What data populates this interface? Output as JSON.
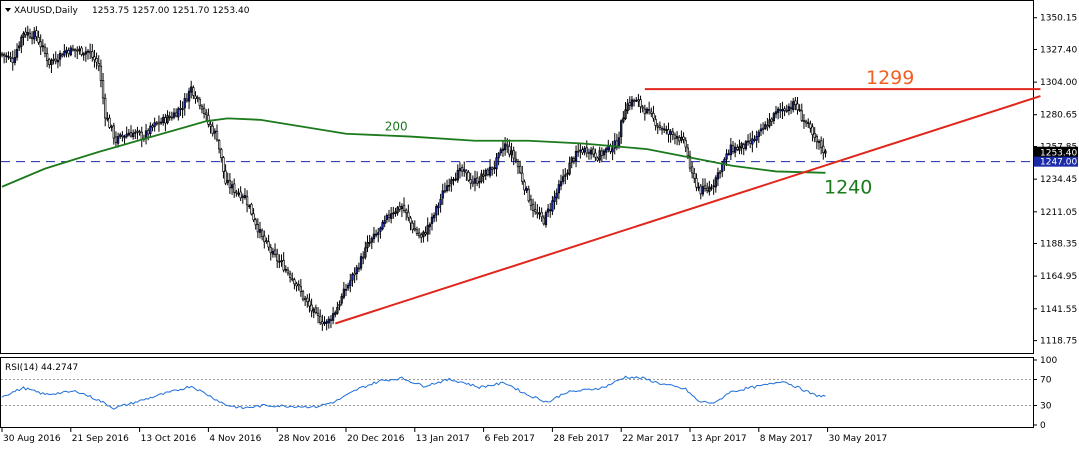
{
  "chart_data": {
    "type": "candlestick",
    "symbol": "XAUUSD",
    "timeframe": "Daily",
    "ohlc_readout": "1253.75 1257.00 1251.70 1253.40",
    "header_label": "XAUUSD,Daily",
    "price_axis": {
      "range": [
        1112,
        1360
      ],
      "ticks": [
        "1350.15",
        "1327.40",
        "1304.00",
        "1280.65",
        "1257.85",
        "1234.45",
        "1211.05",
        "1188.35",
        "1164.95",
        "1141.55",
        "1118.75"
      ],
      "current_price_label": "1253.40",
      "line_price_label": "1247.00",
      "line_price": 1247.0
    },
    "date_axis": {
      "labels": [
        "30 Aug 2016",
        "21 Sep 2016",
        "13 Oct 2016",
        "4 Nov 2016",
        "28 Nov 2016",
        "20 Dec 2016",
        "13 Jan 2017",
        "6 Feb 2017",
        "28 Feb 2017",
        "22 Mar 2017",
        "13 Apr 2017",
        "8 May 2017",
        "30 May 2017"
      ]
    },
    "price_path": [
      [
        0,
        1324
      ],
      [
        5,
        1320
      ],
      [
        10,
        1340
      ],
      [
        16,
        1337
      ],
      [
        22,
        1318
      ],
      [
        30,
        1327
      ],
      [
        40,
        1326
      ],
      [
        45,
        1316
      ],
      [
        48,
        1281
      ],
      [
        53,
        1262
      ],
      [
        59,
        1268
      ],
      [
        66,
        1265
      ],
      [
        71,
        1273
      ],
      [
        79,
        1280
      ],
      [
        84,
        1287
      ],
      [
        88,
        1300
      ],
      [
        93,
        1287
      ],
      [
        96,
        1274
      ],
      [
        100,
        1265
      ],
      [
        104,
        1232
      ],
      [
        108,
        1227
      ],
      [
        113,
        1222
      ],
      [
        117,
        1207
      ],
      [
        121,
        1192
      ],
      [
        126,
        1180
      ],
      [
        131,
        1172
      ],
      [
        136,
        1162
      ],
      [
        140,
        1150
      ],
      [
        146,
        1136
      ],
      [
        151,
        1131
      ],
      [
        155,
        1140
      ],
      [
        160,
        1156
      ],
      [
        165,
        1170
      ],
      [
        170,
        1187
      ],
      [
        176,
        1198
      ],
      [
        181,
        1211
      ],
      [
        186,
        1215
      ],
      [
        191,
        1200
      ],
      [
        195,
        1192
      ],
      [
        200,
        1205
      ],
      [
        205,
        1224
      ],
      [
        209,
        1236
      ],
      [
        214,
        1240
      ],
      [
        219,
        1232
      ],
      [
        224,
        1237
      ],
      [
        229,
        1244
      ],
      [
        234,
        1259
      ],
      [
        239,
        1248
      ],
      [
        244,
        1225
      ],
      [
        248,
        1210
      ],
      [
        252,
        1205
      ],
      [
        256,
        1218
      ],
      [
        260,
        1231
      ],
      [
        265,
        1248
      ],
      [
        269,
        1255
      ],
      [
        273,
        1256
      ],
      [
        277,
        1251
      ],
      [
        280,
        1254
      ],
      [
        286,
        1260
      ],
      [
        290,
        1287
      ],
      [
        294,
        1291
      ],
      [
        298,
        1286
      ],
      [
        302,
        1279
      ],
      [
        306,
        1272
      ],
      [
        310,
        1267
      ],
      [
        314,
        1266
      ],
      [
        318,
        1258
      ],
      [
        321,
        1236
      ],
      [
        325,
        1226
      ],
      [
        328,
        1227
      ],
      [
        331,
        1232
      ],
      [
        335,
        1245
      ],
      [
        339,
        1256
      ],
      [
        343,
        1257
      ],
      [
        347,
        1259
      ],
      [
        351,
        1264
      ],
      [
        354,
        1270
      ],
      [
        357,
        1276
      ],
      [
        361,
        1283
      ],
      [
        365,
        1286
      ],
      [
        369,
        1288
      ],
      [
        372,
        1279
      ],
      [
        375,
        1272
      ],
      [
        378,
        1262
      ],
      [
        381,
        1258
      ],
      [
        383,
        1253
      ]
    ],
    "overlays": [
      {
        "type": "sma",
        "label": "200",
        "color": "#1b7a1b",
        "path": [
          [
            0,
            1229
          ],
          [
            20,
            1242
          ],
          [
            45,
            1254
          ],
          [
            70,
            1265
          ],
          [
            95,
            1276
          ],
          [
            105,
            1278
          ],
          [
            120,
            1277
          ],
          [
            140,
            1272
          ],
          [
            160,
            1267
          ],
          [
            190,
            1265
          ],
          [
            220,
            1262
          ],
          [
            245,
            1262
          ],
          [
            270,
            1260
          ],
          [
            300,
            1256
          ],
          [
            320,
            1250
          ],
          [
            340,
            1244
          ],
          [
            360,
            1240
          ],
          [
            383,
            1239
          ]
        ]
      },
      {
        "type": "support-trendline",
        "color": "#e1261c",
        "from": [
          155,
          1131
        ],
        "to": [
          483,
          1294
        ]
      },
      {
        "type": "resistance-line",
        "label": "1299",
        "color": "#e1261c",
        "from": [
          299,
          1299
        ],
        "to": [
          483,
          1299
        ]
      },
      {
        "type": "support-level",
        "label": "1240",
        "color": "#1b7a1b",
        "price": 1240
      }
    ],
    "rsi": {
      "header": "RSI(14) 44.2747",
      "range": [
        0,
        100
      ],
      "ticks": [
        "100",
        "70",
        "30",
        "0"
      ],
      "levels": [
        70,
        30
      ],
      "color": "#1e6fd9",
      "path": [
        [
          0,
          44
        ],
        [
          10,
          57
        ],
        [
          20,
          47
        ],
        [
          35,
          52
        ],
        [
          45,
          38
        ],
        [
          52,
          26
        ],
        [
          60,
          33
        ],
        [
          72,
          45
        ],
        [
          80,
          52
        ],
        [
          88,
          60
        ],
        [
          96,
          46
        ],
        [
          104,
          31
        ],
        [
          112,
          26
        ],
        [
          122,
          30
        ],
        [
          134,
          29
        ],
        [
          146,
          28
        ],
        [
          155,
          36
        ],
        [
          166,
          56
        ],
        [
          176,
          68
        ],
        [
          186,
          72
        ],
        [
          196,
          60
        ],
        [
          208,
          70
        ],
        [
          214,
          66
        ],
        [
          222,
          58
        ],
        [
          234,
          65
        ],
        [
          244,
          47
        ],
        [
          254,
          35
        ],
        [
          262,
          50
        ],
        [
          272,
          54
        ],
        [
          280,
          58
        ],
        [
          290,
          74
        ],
        [
          298,
          72
        ],
        [
          306,
          64
        ],
        [
          318,
          55
        ],
        [
          324,
          36
        ],
        [
          332,
          34
        ],
        [
          338,
          50
        ],
        [
          346,
          56
        ],
        [
          356,
          62
        ],
        [
          363,
          68
        ],
        [
          370,
          58
        ],
        [
          378,
          46
        ],
        [
          383,
          44
        ]
      ]
    }
  }
}
